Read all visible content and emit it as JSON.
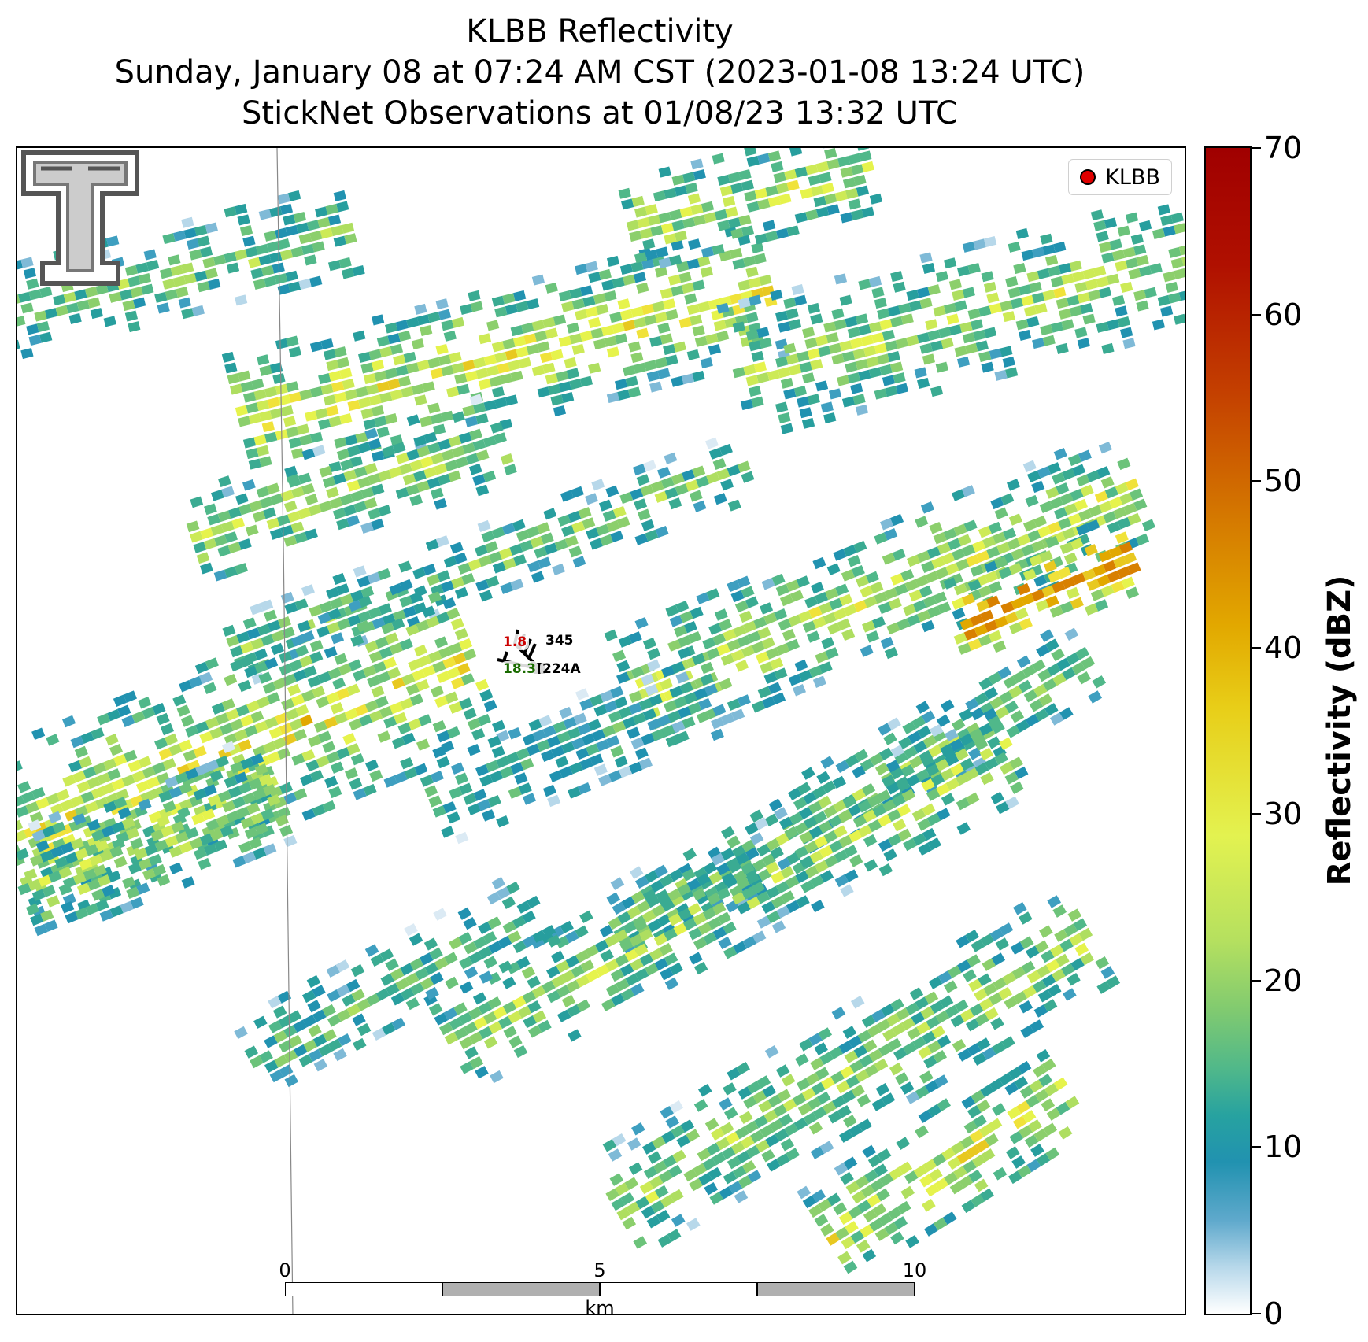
{
  "title": {
    "line1": "KLBB Reflectivity",
    "line2": "Sunday, January 08 at 07:24 AM CST (2023-01-08 13:24 UTC)",
    "line3": "StickNet Observations at 01/08/23 13:32 UTC"
  },
  "legend": {
    "label": "KLBB",
    "marker_color": "#e00000"
  },
  "stations": [
    {
      "id": "345",
      "value": "1.8",
      "value_color": "#cc0000"
    },
    {
      "id": "224A",
      "value": "18.3",
      "value_color": "#1a6b00"
    }
  ],
  "scalebar": {
    "ticks": [
      "0",
      "5",
      "10"
    ],
    "unit": "km"
  },
  "colorbar": {
    "label": "Reflectivity (dBZ)",
    "ticks": [
      "0",
      "10",
      "20",
      "30",
      "40",
      "50",
      "60",
      "70"
    ],
    "range": [
      0,
      70
    ]
  },
  "logo": {
    "icon": "texas-tech-double-t-logo"
  }
}
